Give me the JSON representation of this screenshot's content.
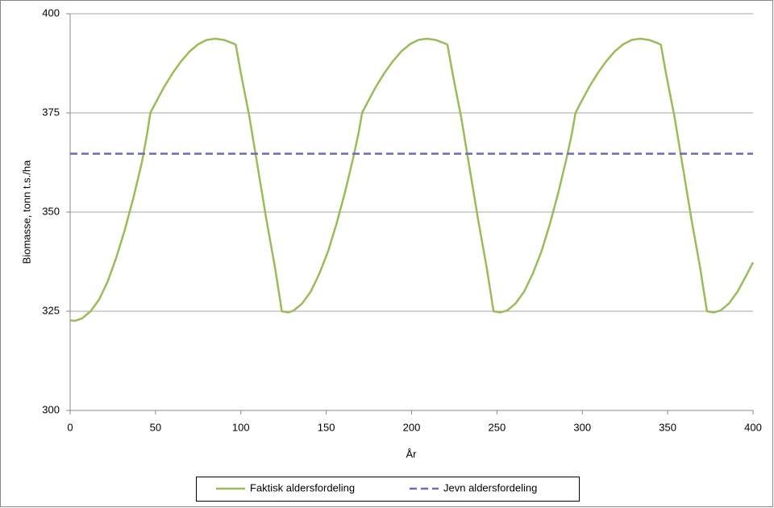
{
  "chart_data": {
    "type": "line",
    "y_label": "Biomasse, tonn t.s./ha",
    "x_label": "År",
    "xlim": [
      0,
      400
    ],
    "xticks": [
      0,
      50,
      100,
      150,
      200,
      250,
      300,
      350,
      400
    ],
    "ylim": [
      300,
      400
    ],
    "yticks": [
      300,
      325,
      350,
      375,
      400
    ],
    "grid": true,
    "legend": "bottom",
    "series": [
      {
        "name": "Faktisk aldersfordeling",
        "color": "#9bbb59",
        "dash": false,
        "x": [
          0,
          3,
          7,
          12,
          17,
          22,
          27,
          32,
          37,
          42,
          45,
          47,
          50,
          55,
          60,
          65,
          70,
          75,
          80,
          85,
          90,
          95,
          97,
          100,
          105,
          110,
          115,
          120,
          124,
          128,
          131,
          136,
          141,
          146,
          151,
          156,
          161,
          166,
          169,
          171,
          174,
          179,
          184,
          189,
          194,
          199,
          204,
          209,
          214,
          219,
          221,
          224,
          229,
          234,
          239,
          244,
          248,
          252,
          256,
          261,
          266,
          271,
          276,
          281,
          286,
          291,
          294,
          296,
          299,
          304,
          309,
          314,
          319,
          324,
          329,
          334,
          339,
          344,
          346,
          349,
          354,
          359,
          364,
          369,
          373,
          377,
          381,
          386,
          391,
          396,
          400
        ],
        "values": [
          322.7,
          322.6,
          323.2,
          325,
          328,
          332.5,
          338.5,
          345.5,
          353.5,
          362.5,
          369.5,
          375,
          377.5,
          381.5,
          385,
          388,
          390.5,
          392.3,
          393.4,
          393.7,
          393.4,
          392.6,
          392.2,
          385,
          374,
          361,
          348,
          336,
          325,
          324.7,
          325.2,
          327,
          330,
          334.5,
          340,
          347,
          355,
          364,
          370,
          375,
          377.5,
          381.5,
          385,
          388,
          390.5,
          392.3,
          393.4,
          393.7,
          393.4,
          392.6,
          392.2,
          385,
          374,
          361,
          348,
          336,
          325,
          324.7,
          325.2,
          327,
          330,
          334.5,
          340,
          347,
          355,
          364,
          370,
          375,
          377.5,
          381.5,
          385,
          388,
          390.5,
          392.3,
          393.4,
          393.7,
          393.4,
          392.6,
          392.2,
          385,
          374,
          361,
          348,
          336,
          325,
          324.7,
          325.2,
          327,
          330,
          334,
          337.3
        ]
      },
      {
        "name": "Jevn aldersfordeling",
        "color": "#6c6cb4",
        "dash": true,
        "x": [
          0,
          400
        ],
        "values": [
          364.7,
          364.7
        ]
      }
    ]
  }
}
